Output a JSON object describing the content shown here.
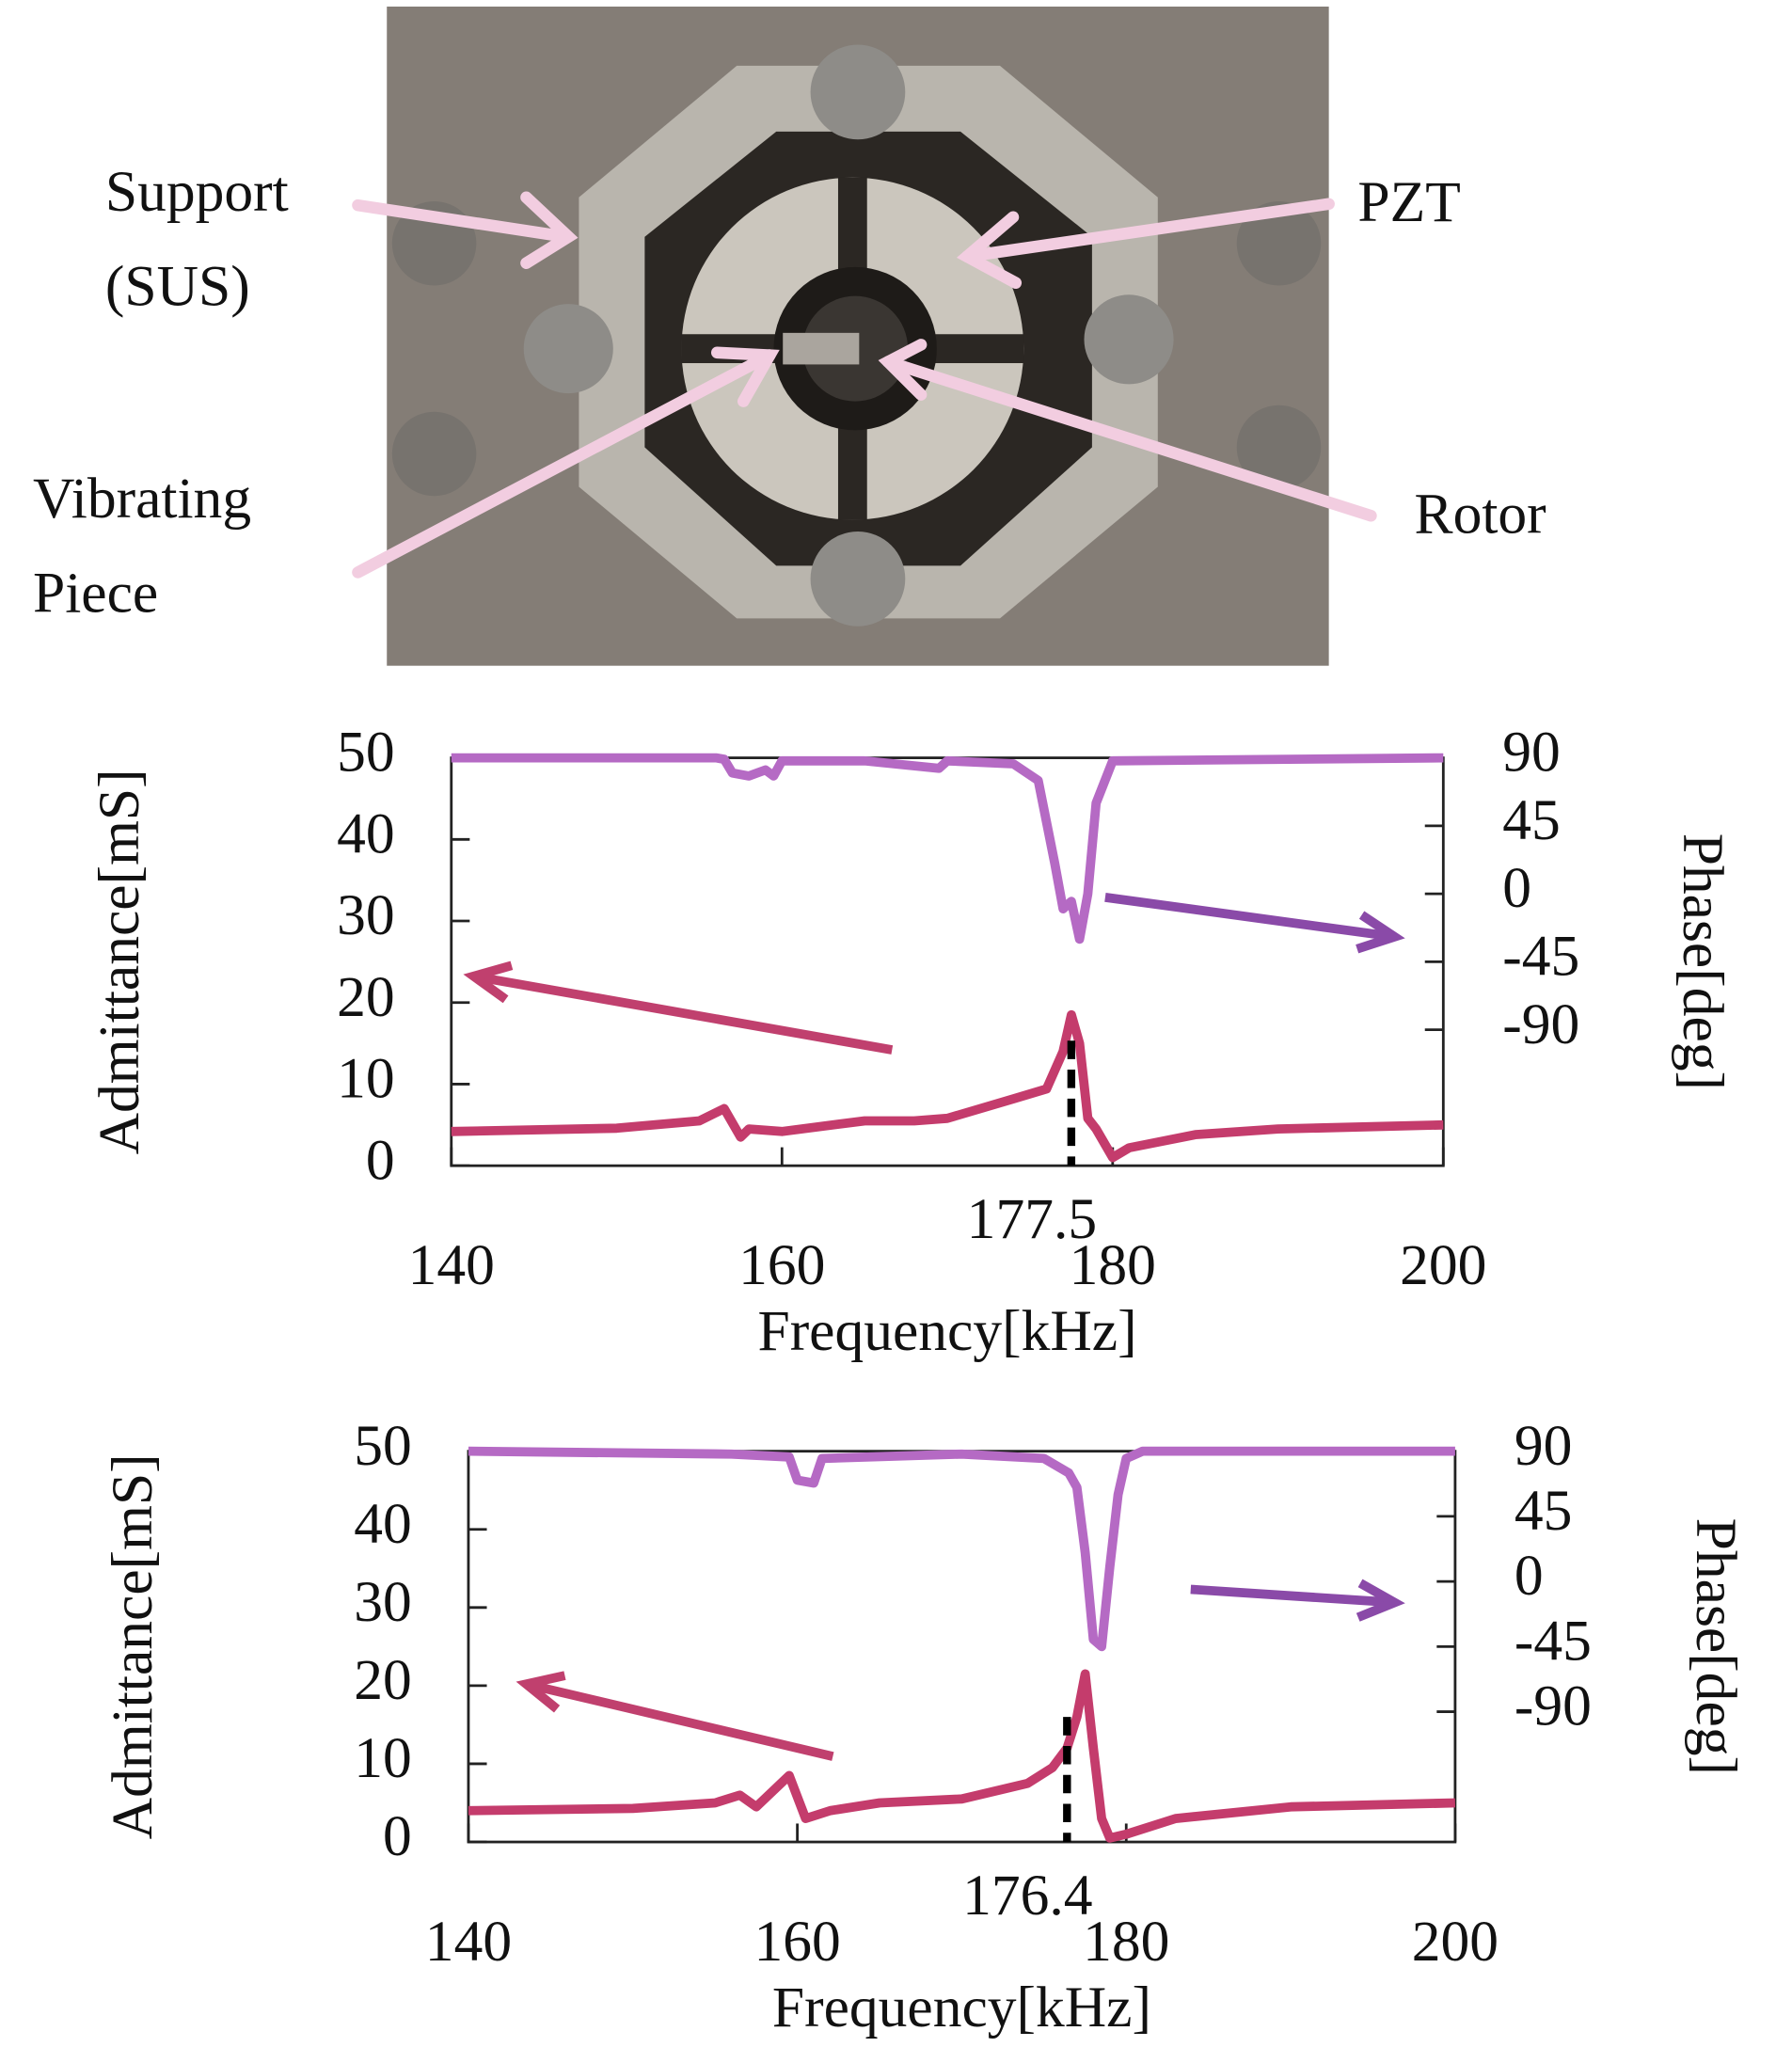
{
  "photo": {
    "labels": [
      "Support",
      "(SUS)",
      "PZT",
      "Vibrating",
      "Piece",
      "Rotor"
    ]
  },
  "chart_data": [
    {
      "type": "line",
      "xlabel": "Frequency[kHz]",
      "ylabel": "Admittance[mS]",
      "y2label": "Phase[deg]",
      "xlim": [
        140,
        200
      ],
      "xticks": [
        140,
        160,
        180,
        200
      ],
      "ylim": [
        0,
        50
      ],
      "yticks": [
        0,
        10,
        20,
        30,
        40,
        50
      ],
      "y2lim": [
        -180,
        90
      ],
      "y2ticks": [
        -90,
        -45,
        0,
        45,
        90
      ],
      "marker": 177.5,
      "series": [
        {
          "color": "#c43c6c",
          "x": [
            140,
            150,
            155,
            156.5,
            157.5,
            158,
            160,
            165,
            168,
            170,
            174,
            176,
            177,
            177.5,
            178,
            178.5,
            179,
            180,
            181,
            185,
            190,
            200
          ],
          "values": [
            4.2,
            4.6,
            5.5,
            7,
            3.5,
            4.5,
            4.2,
            5.5,
            5.5,
            5.8,
            8.2,
            9.4,
            14,
            18.5,
            15,
            5.8,
            4.5,
            1,
            2.2,
            3.8,
            4.5,
            5
          ]
        },
        {
          "color": "#b56ac4",
          "axis": "y2",
          "x": [
            140,
            156,
            156.5,
            157,
            158,
            159,
            159.5,
            160,
            165,
            169.5,
            170,
            174,
            175.5,
            176.5,
            177,
            177.5,
            178,
            178.5,
            179,
            180,
            200
          ],
          "values": [
            90,
            90,
            89,
            80,
            78,
            82,
            78,
            88,
            88,
            83,
            88,
            86,
            75,
            20,
            -10,
            -5,
            -30,
            0,
            60,
            88,
            90
          ]
        }
      ]
    },
    {
      "type": "line",
      "xlabel": "Frequency[kHz]",
      "ylabel": "Admittance[mS]",
      "y2label": "Phase[deg]",
      "xlim": [
        140,
        200
      ],
      "xticks": [
        140,
        160,
        180,
        200
      ],
      "ylim": [
        0,
        50
      ],
      "yticks": [
        0,
        10,
        20,
        30,
        40,
        50
      ],
      "y2lim": [
        -180,
        90
      ],
      "y2ticks": [
        -90,
        -45,
        0,
        45,
        90
      ],
      "marker": 176.4,
      "series": [
        {
          "color": "#c43c6c",
          "x": [
            140,
            150,
            155,
            156.5,
            157.5,
            159.5,
            160.5,
            162,
            165,
            170,
            174,
            175.5,
            176.4,
            177,
            177.5,
            178,
            178.5,
            179,
            180,
            183,
            190,
            200
          ],
          "values": [
            4,
            4.3,
            5,
            6,
            4.5,
            8.5,
            3,
            4,
            5,
            5.5,
            7.5,
            9.5,
            12,
            16,
            21.5,
            12,
            3,
            0.5,
            1,
            3,
            4.5,
            5
          ]
        },
        {
          "color": "#b56ac4",
          "axis": "y2",
          "x": [
            140,
            156,
            159.5,
            160,
            161,
            161.5,
            170,
            175,
            176.5,
            177,
            177.5,
            178,
            178.5,
            179,
            179.5,
            180,
            181,
            200
          ],
          "values": [
            90,
            88,
            86,
            70,
            68,
            85,
            88,
            85,
            75,
            65,
            20,
            -40,
            -45,
            10,
            60,
            85,
            90,
            90
          ]
        }
      ]
    }
  ]
}
